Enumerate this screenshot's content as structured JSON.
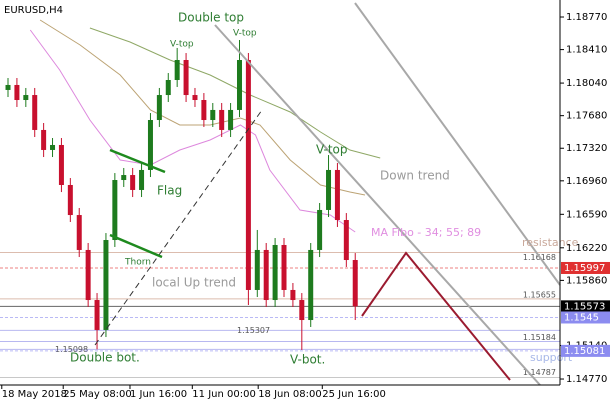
{
  "chart_data": {
    "type": "candlestick",
    "title": "EURUSD,H4",
    "up_color": "#1e7b1e",
    "down_color": "#c8102e",
    "open": [
      1.17964,
      1.18019,
      1.17853,
      1.17908,
      1.17522,
      1.17301,
      1.17356,
      1.16914,
      1.16582,
      1.16196,
      1.15643,
      1.15312,
      1.16306,
      1.16969,
      1.17024,
      1.16859,
      1.1708,
      1.17632,
      1.17908,
      1.18074,
      1.18295,
      1.17908,
      1.17853,
      1.17632,
      1.17743,
      1.17522,
      1.17743,
      1.18295,
      1.15754,
      1.16196,
      1.15643,
      1.16251,
      1.15754,
      1.15643,
      1.15422,
      1.16196,
      1.16638,
      1.1708,
      1.16527,
      1.16085
    ],
    "high": [
      1.18096,
      1.18096,
      1.17986,
      1.17986,
      1.17599,
      1.17433,
      1.17433,
      1.16991,
      1.1666,
      1.16273,
      1.1572,
      1.16383,
      1.17046,
      1.17102,
      1.17102,
      1.17157,
      1.17709,
      1.17986,
      1.18151,
      1.18428,
      1.18372,
      1.17986,
      1.1793,
      1.1782,
      1.1782,
      1.1782,
      1.18516,
      1.18372,
      1.16417,
      1.16273,
      1.16328,
      1.16328,
      1.15831,
      1.1572,
      1.16273,
      1.16715,
      1.17245,
      1.17157,
      1.16604,
      1.16162
    ],
    "low": [
      1.17886,
      1.17776,
      1.17776,
      1.17444,
      1.17223,
      1.17223,
      1.16836,
      1.16505,
      1.16118,
      1.15566,
      1.15098,
      1.15234,
      1.16229,
      1.16892,
      1.16781,
      1.16781,
      1.17002,
      1.17555,
      1.17831,
      1.17997,
      1.17831,
      1.17776,
      1.17555,
      1.17555,
      1.17444,
      1.17444,
      1.17665,
      1.15588,
      1.15676,
      1.15566,
      1.15566,
      1.15676,
      1.15566,
      1.15091,
      1.15345,
      1.16118,
      1.1656,
      1.1645,
      1.16008,
      1.15422
    ],
    "close": [
      1.18019,
      1.17853,
      1.17908,
      1.17522,
      1.17301,
      1.17356,
      1.16914,
      1.16582,
      1.16196,
      1.15643,
      1.15312,
      1.16306,
      1.16969,
      1.17024,
      1.16859,
      1.1708,
      1.17632,
      1.17908,
      1.18074,
      1.18295,
      1.17908,
      1.17853,
      1.17632,
      1.17743,
      1.17522,
      1.17743,
      1.18295,
      1.15754,
      1.16196,
      1.15643,
      1.16251,
      1.15754,
      1.15643,
      1.15422,
      1.16196,
      1.16638,
      1.1708,
      1.16527,
      1.16085,
      1.15573
    ],
    "ylim": [
      1.14704,
      1.18958
    ],
    "yticks": [
      {
        "value": 1.1877,
        "label": "1.18770"
      },
      {
        "value": 1.1841,
        "label": "1.18410"
      },
      {
        "value": 1.1804,
        "label": "1.18040"
      },
      {
        "value": 1.1768,
        "label": "1.17680"
      },
      {
        "value": 1.1732,
        "label": "1.17320"
      },
      {
        "value": 1.1696,
        "label": "1.16960"
      },
      {
        "value": 1.1659,
        "label": "1.16590"
      },
      {
        "value": 1.1622,
        "label": "1.16220"
      },
      {
        "value": 1.1586,
        "label": "1.15860"
      },
      {
        "value": 1.1514,
        "label": "1.15140"
      },
      {
        "value": 1.1477,
        "label": "1.14770"
      }
    ],
    "xlim": [
      -0.9,
      62
    ],
    "xticks": [
      {
        "value": -0.7,
        "label": "18 May 2018"
      },
      {
        "value": 6.2,
        "label": "25 May 08:00"
      },
      {
        "value": 13.7,
        "label": "1 Jun 16:00"
      },
      {
        "value": 20.7,
        "label": "11 Jun 00:00"
      },
      {
        "value": 28.1,
        "label": "18 Jun 08:00"
      },
      {
        "value": 35.3,
        "label": "25 Jun 16:00"
      }
    ],
    "moving_averages": [
      {
        "color": "#dd88dd",
        "x": [
          2.5,
          5.8,
          9.2,
          12.6,
          16.0,
          19.3,
          22.7,
          26.1,
          27.8,
          29.4,
          32.8,
          36.2,
          39.0
        ],
        "values": [
          1.18627,
          1.18185,
          1.17632,
          1.1719,
          1.17135,
          1.17301,
          1.17411,
          1.17577,
          1.17466,
          1.1708,
          1.16638,
          1.16582,
          1.16394
        ]
      },
      {
        "color": "#bca374",
        "x": [
          3.6,
          8.1,
          12.6,
          16.0,
          19.3,
          22.7,
          26.1,
          28.3,
          31.7,
          35.1,
          38.4,
          40.1
        ],
        "values": [
          1.18737,
          1.18461,
          1.18129,
          1.17743,
          1.17577,
          1.17577,
          1.17654,
          1.17577,
          1.1719,
          1.16914,
          1.16836,
          1.16803
        ]
      },
      {
        "color": "#8fa866",
        "x": [
          9.2,
          13.7,
          18.2,
          22.7,
          27.2,
          31.7,
          35.1,
          38.4,
          41.8
        ],
        "values": [
          1.18649,
          1.18494,
          1.18295,
          1.18129,
          1.17908,
          1.1772,
          1.17499,
          1.17301,
          1.17212
        ]
      }
    ],
    "levels": [
      {
        "value": 1.16168,
        "color": "#dcbcae"
      },
      {
        "value": 1.15655,
        "color": "#dcbcae"
      },
      {
        "value": 1.15307,
        "color": "#b8b8f0"
      },
      {
        "value": 1.15184,
        "color": "#b8b8f0"
      },
      {
        "value": 1.15098,
        "color": "#b8b8f0"
      },
      {
        "value": 1.14787,
        "color": "#c8c8c8"
      }
    ],
    "price_marks": [
      {
        "value": 1.15997,
        "color": "#e03030"
      },
      {
        "value": 1.15573,
        "color": "#000000"
      },
      {
        "value": 1.1545,
        "color": "#8c8cf0"
      },
      {
        "value": 1.15081,
        "color": "#8c8cf0"
      }
    ],
    "annotations": {
      "double_top": "Double top",
      "v_top_1": "V-top",
      "v_top_2": "V-top",
      "v_top_3": "V-top",
      "flag": "Flag",
      "thorn": "Thorn",
      "local_up_trend": "local Up trend",
      "down_trend": "Down trend",
      "ma_fibo": "MA Fibo - 34; 55; 89",
      "resistance": "resistance",
      "support": "support",
      "double_bot": "Double bot.",
      "v_bot": "V-bot."
    }
  }
}
